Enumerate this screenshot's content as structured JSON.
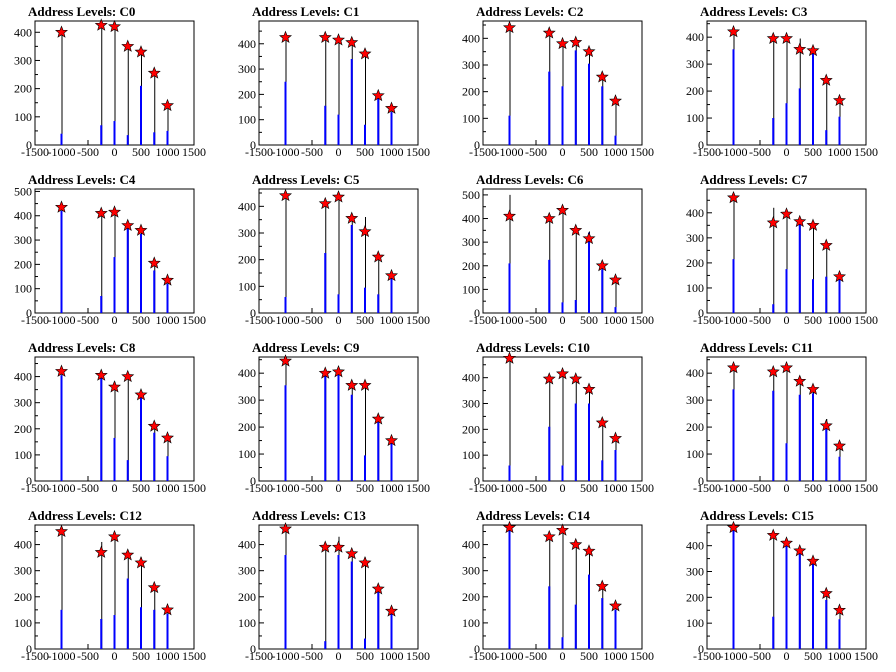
{
  "chart_data": [
    {
      "title": "Address Levels: C0",
      "type": "bar",
      "xlim": [
        -1500,
        1500
      ],
      "ylim": [
        0,
        440
      ],
      "yticks": [
        0,
        100,
        200,
        300,
        400
      ],
      "xticks": [
        -1500,
        -1000,
        -500,
        0,
        500,
        1000,
        1500
      ],
      "x": [
        -1000,
        -250,
        0,
        250,
        500,
        750,
        1000
      ],
      "values": [
        40,
        70,
        85,
        35,
        210,
        45,
        50
      ],
      "peak_values": [
        400,
        425,
        420,
        350,
        330,
        255,
        140
      ],
      "star_values": [
        400,
        425,
        420,
        350,
        330,
        255,
        140
      ]
    },
    {
      "title": "Address Levels: C1",
      "type": "bar",
      "xlim": [
        -1500,
        1500
      ],
      "ylim": [
        0,
        490
      ],
      "yticks": [
        0,
        100,
        200,
        300,
        400
      ],
      "xticks": [
        -1500,
        -1000,
        -500,
        0,
        500,
        1000,
        1500
      ],
      "x": [
        -1000,
        -250,
        0,
        250,
        500,
        750,
        1000
      ],
      "values": [
        250,
        155,
        120,
        340,
        80,
        200,
        130
      ],
      "peak_values": [
        420,
        420,
        415,
        400,
        360,
        200,
        145
      ],
      "star_values": [
        425,
        425,
        415,
        405,
        360,
        195,
        145
      ]
    },
    {
      "title": "Address Levels: C2",
      "type": "bar",
      "xlim": [
        -1500,
        1500
      ],
      "ylim": [
        0,
        465
      ],
      "yticks": [
        0,
        100,
        200,
        300,
        400
      ],
      "xticks": [
        -1500,
        -1000,
        -500,
        0,
        500,
        1000,
        1500
      ],
      "x": [
        -1000,
        -250,
        0,
        250,
        500,
        750,
        1000
      ],
      "values": [
        110,
        275,
        220,
        355,
        305,
        220,
        35
      ],
      "peak_values": [
        440,
        415,
        385,
        390,
        360,
        255,
        160
      ],
      "star_values": [
        440,
        420,
        380,
        385,
        350,
        255,
        165
      ]
    },
    {
      "title": "Address Levels: C3",
      "type": "bar",
      "xlim": [
        -1500,
        1500
      ],
      "ylim": [
        0,
        460
      ],
      "yticks": [
        0,
        100,
        200,
        300,
        400
      ],
      "xticks": [
        -1500,
        -1000,
        -500,
        0,
        500,
        1000,
        1500
      ],
      "x": [
        -1000,
        -250,
        0,
        250,
        500,
        750,
        1000
      ],
      "values": [
        355,
        100,
        155,
        210,
        340,
        55,
        105
      ],
      "peak_values": [
        420,
        400,
        400,
        395,
        355,
        245,
        160
      ],
      "star_values": [
        420,
        395,
        395,
        355,
        350,
        240,
        165
      ]
    },
    {
      "title": "Address Levels: C4",
      "type": "bar",
      "xlim": [
        -1500,
        1500
      ],
      "ylim": [
        0,
        510
      ],
      "yticks": [
        0,
        100,
        200,
        300,
        400,
        500
      ],
      "xticks": [
        -1500,
        -1000,
        -500,
        0,
        500,
        1000,
        1500
      ],
      "x": [
        -1000,
        -250,
        0,
        250,
        500,
        750,
        1000
      ],
      "values": [
        420,
        70,
        230,
        360,
        325,
        175,
        120
      ],
      "peak_values": [
        440,
        410,
        420,
        360,
        340,
        205,
        135
      ],
      "star_values": [
        435,
        410,
        415,
        360,
        340,
        205,
        135
      ]
    },
    {
      "title": "Address Levels: C5",
      "type": "bar",
      "xlim": [
        -1500,
        1500
      ],
      "ylim": [
        0,
        465
      ],
      "yticks": [
        0,
        100,
        200,
        300,
        400
      ],
      "xticks": [
        -1500,
        -1000,
        -500,
        0,
        500,
        1000,
        1500
      ],
      "x": [
        -1000,
        -250,
        0,
        250,
        500,
        750,
        1000
      ],
      "values": [
        60,
        225,
        70,
        330,
        95,
        70,
        130
      ],
      "peak_values": [
        440,
        400,
        440,
        360,
        360,
        215,
        140
      ],
      "star_values": [
        440,
        410,
        435,
        355,
        305,
        210,
        140
      ]
    },
    {
      "title": "Address Levels: C6",
      "type": "bar",
      "xlim": [
        -1500,
        1500
      ],
      "ylim": [
        0,
        525
      ],
      "yticks": [
        0,
        100,
        200,
        300,
        400,
        500
      ],
      "xticks": [
        -1500,
        -1000,
        -500,
        0,
        500,
        1000,
        1500
      ],
      "x": [
        -1000,
        -250,
        0,
        250,
        500,
        750,
        1000
      ],
      "values": [
        210,
        225,
        45,
        55,
        340,
        185,
        25
      ],
      "peak_values": [
        500,
        410,
        440,
        360,
        345,
        200,
        140
      ],
      "star_values": [
        410,
        400,
        435,
        350,
        315,
        200,
        140
      ]
    },
    {
      "title": "Address Levels: C7",
      "type": "bar",
      "xlim": [
        -1500,
        1500
      ],
      "ylim": [
        0,
        495
      ],
      "yticks": [
        0,
        100,
        200,
        300,
        400
      ],
      "xticks": [
        -1500,
        -1000,
        -500,
        0,
        500,
        1000,
        1500
      ],
      "x": [
        -1000,
        -250,
        0,
        250,
        500,
        750,
        1000
      ],
      "values": [
        215,
        35,
        175,
        355,
        135,
        145,
        135
      ],
      "peak_values": [
        460,
        420,
        400,
        370,
        360,
        270,
        145
      ],
      "star_values": [
        460,
        360,
        395,
        365,
        350,
        270,
        145
      ]
    },
    {
      "title": "Address Levels: C8",
      "type": "bar",
      "xlim": [
        -1500,
        1500
      ],
      "ylim": [
        0,
        475
      ],
      "yticks": [
        0,
        100,
        200,
        300,
        400
      ],
      "xticks": [
        -1500,
        -1000,
        -500,
        0,
        500,
        1000,
        1500
      ],
      "x": [
        -1000,
        -250,
        0,
        250,
        500,
        750,
        1000
      ],
      "values": [
        405,
        395,
        165,
        80,
        320,
        185,
        95
      ],
      "peak_values": [
        430,
        410,
        380,
        400,
        340,
        220,
        170
      ],
      "star_values": [
        420,
        405,
        360,
        400,
        330,
        210,
        165
      ]
    },
    {
      "title": "Address Levels: C9",
      "type": "bar",
      "xlim": [
        -1500,
        1500
      ],
      "ylim": [
        0,
        460
      ],
      "yticks": [
        0,
        100,
        200,
        300,
        400
      ],
      "xticks": [
        -1500,
        -1000,
        -500,
        0,
        500,
        1000,
        1500
      ],
      "x": [
        -1000,
        -250,
        0,
        250,
        500,
        750,
        1000
      ],
      "values": [
        355,
        395,
        395,
        320,
        95,
        220,
        140
      ],
      "peak_values": [
        445,
        405,
        410,
        360,
        360,
        235,
        155
      ],
      "star_values": [
        445,
        400,
        405,
        355,
        355,
        230,
        150
      ]
    },
    {
      "title": "Address Levels: C10",
      "type": "bar",
      "xlim": [
        -1500,
        1500
      ],
      "ylim": [
        0,
        480
      ],
      "yticks": [
        0,
        100,
        200,
        300,
        400
      ],
      "xticks": [
        -1500,
        -1000,
        -500,
        0,
        500,
        1000,
        1500
      ],
      "x": [
        -1000,
        -250,
        0,
        250,
        500,
        750,
        1000
      ],
      "values": [
        60,
        210,
        60,
        300,
        300,
        80,
        120
      ],
      "peak_values": [
        475,
        400,
        420,
        400,
        360,
        230,
        170
      ],
      "star_values": [
        475,
        395,
        415,
        395,
        355,
        225,
        165
      ]
    },
    {
      "title": "Address Levels: C11",
      "type": "bar",
      "xlim": [
        -1500,
        1500
      ],
      "ylim": [
        0,
        460
      ],
      "yticks": [
        0,
        100,
        200,
        300,
        400
      ],
      "xticks": [
        -1500,
        -1000,
        -500,
        0,
        500,
        1000,
        1500
      ],
      "x": [
        -1000,
        -250,
        0,
        250,
        500,
        750,
        1000
      ],
      "values": [
        340,
        335,
        140,
        320,
        325,
        200,
        90
      ],
      "peak_values": [
        420,
        410,
        420,
        380,
        350,
        230,
        145
      ],
      "star_values": [
        420,
        405,
        420,
        370,
        340,
        205,
        130
      ]
    },
    {
      "title": "Address Levels: C12",
      "type": "bar",
      "xlim": [
        -1500,
        1500
      ],
      "ylim": [
        0,
        475
      ],
      "yticks": [
        0,
        100,
        200,
        300,
        400
      ],
      "xticks": [
        -1500,
        -1000,
        -500,
        0,
        500,
        1000,
        1500
      ],
      "x": [
        -1000,
        -250,
        0,
        250,
        500,
        750,
        1000
      ],
      "values": [
        150,
        115,
        130,
        270,
        160,
        150,
        135
      ],
      "peak_values": [
        450,
        410,
        430,
        360,
        350,
        235,
        160
      ],
      "star_values": [
        450,
        370,
        430,
        360,
        330,
        235,
        150
      ]
    },
    {
      "title": "Address Levels: C13",
      "type": "bar",
      "xlim": [
        -1500,
        1500
      ],
      "ylim": [
        0,
        475
      ],
      "yticks": [
        0,
        100,
        200,
        300,
        400
      ],
      "xticks": [
        -1500,
        -1000,
        -500,
        0,
        500,
        1000,
        1500
      ],
      "x": [
        -1000,
        -250,
        0,
        250,
        500,
        750,
        1000
      ],
      "values": [
        360,
        30,
        360,
        335,
        40,
        225,
        145
      ],
      "peak_values": [
        460,
        400,
        430,
        370,
        350,
        230,
        150
      ],
      "star_values": [
        460,
        390,
        390,
        365,
        330,
        230,
        145
      ]
    },
    {
      "title": "Address Levels: C14",
      "type": "bar",
      "xlim": [
        -1500,
        1500
      ],
      "ylim": [
        0,
        475
      ],
      "yticks": [
        0,
        100,
        200,
        300,
        400
      ],
      "xticks": [
        -1500,
        -1000,
        -500,
        0,
        500,
        1000,
        1500
      ],
      "x": [
        -1000,
        -250,
        0,
        250,
        500,
        750,
        1000
      ],
      "values": [
        465,
        240,
        45,
        170,
        285,
        195,
        150
      ],
      "peak_values": [
        465,
        430,
        460,
        400,
        375,
        240,
        165
      ],
      "star_values": [
        465,
        430,
        455,
        400,
        375,
        240,
        165
      ]
    },
    {
      "title": "Address Levels: C15",
      "type": "bar",
      "xlim": [
        -1500,
        1500
      ],
      "ylim": [
        0,
        480
      ],
      "yticks": [
        0,
        100,
        200,
        300,
        400
      ],
      "xticks": [
        -1500,
        -1000,
        -500,
        0,
        500,
        1000,
        1500
      ],
      "x": [
        -1000,
        -250,
        0,
        250,
        500,
        750,
        1000
      ],
      "values": [
        470,
        125,
        400,
        380,
        330,
        190,
        115
      ],
      "peak_values": [
        470,
        440,
        420,
        390,
        345,
        220,
        155
      ],
      "star_values": [
        470,
        440,
        410,
        380,
        340,
        215,
        150
      ]
    }
  ],
  "style": {
    "bar_color": "#0000ff",
    "peak_color": "#000000",
    "star_fill": "#ff0000",
    "star_stroke": "#000000"
  }
}
